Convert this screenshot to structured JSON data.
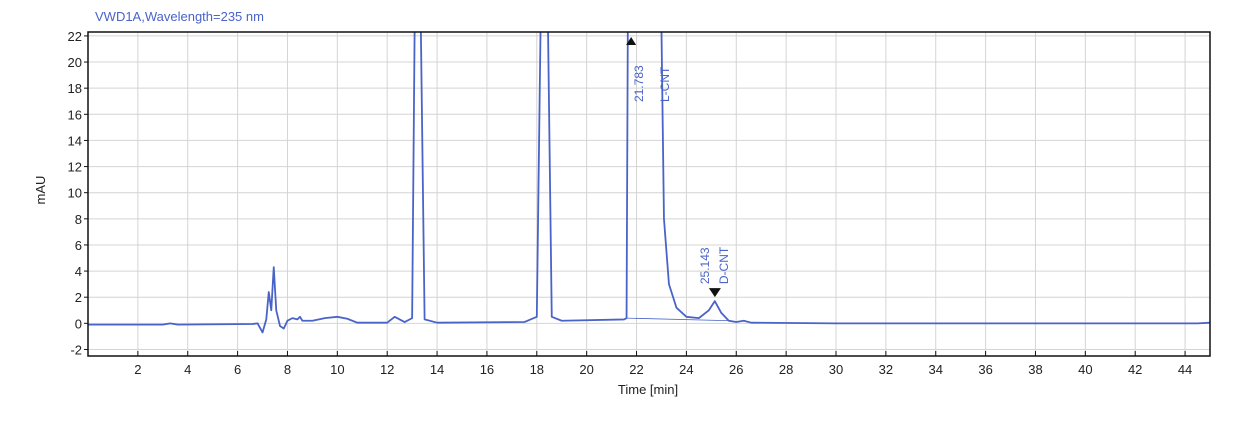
{
  "chart_data": {
    "type": "line",
    "title": "VWD1A,Wavelength=235 nm",
    "xlabel": "Time [min]",
    "ylabel": "mAU",
    "xlim": [
      0,
      45
    ],
    "ylim": [
      -2.5,
      22.3
    ],
    "xticks": [
      2,
      4,
      6,
      8,
      10,
      12,
      14,
      16,
      18,
      20,
      22,
      24,
      26,
      28,
      30,
      32,
      34,
      36,
      38,
      40,
      42,
      44
    ],
    "yticks": [
      -2,
      0,
      2,
      4,
      6,
      8,
      10,
      12,
      14,
      16,
      18,
      20,
      22
    ],
    "grid": true,
    "line_color": "#4a63c9",
    "series": [
      {
        "points": [
          [
            0,
            -0.1
          ],
          [
            3,
            -0.1
          ],
          [
            3.3,
            0
          ],
          [
            3.6,
            -0.1
          ],
          [
            6.6,
            -0.05
          ],
          [
            6.8,
            0
          ],
          [
            7.0,
            -0.7
          ],
          [
            7.15,
            0.3
          ],
          [
            7.25,
            2.4
          ],
          [
            7.35,
            1.0
          ],
          [
            7.45,
            4.3
          ],
          [
            7.55,
            1.0
          ],
          [
            7.7,
            -0.2
          ],
          [
            7.85,
            -0.4
          ],
          [
            8.0,
            0.2
          ],
          [
            8.2,
            0.4
          ],
          [
            8.4,
            0.3
          ],
          [
            8.5,
            0.5
          ],
          [
            8.6,
            0.2
          ],
          [
            9.0,
            0.2
          ],
          [
            9.5,
            0.4
          ],
          [
            10.0,
            0.5
          ],
          [
            10.4,
            0.35
          ],
          [
            10.8,
            0.05
          ],
          [
            12.0,
            0.05
          ],
          [
            12.3,
            0.5
          ],
          [
            12.5,
            0.3
          ],
          [
            12.7,
            0.1
          ],
          [
            13.0,
            0.4
          ],
          [
            13.1,
            22.5
          ],
          [
            13.35,
            22.5
          ],
          [
            13.5,
            0.3
          ],
          [
            14,
            0.05
          ],
          [
            17.5,
            0.1
          ],
          [
            18.0,
            0.5
          ],
          [
            18.15,
            22.5
          ],
          [
            18.45,
            22.5
          ],
          [
            18.6,
            0.5
          ],
          [
            19,
            0.2
          ],
          [
            21.5,
            0.3
          ],
          [
            21.6,
            0.4
          ],
          [
            21.65,
            22.5
          ],
          [
            23.0,
            22.5
          ],
          [
            23.1,
            8
          ],
          [
            23.3,
            3
          ],
          [
            23.6,
            1.2
          ],
          [
            24.0,
            0.5
          ],
          [
            24.5,
            0.4
          ],
          [
            24.9,
            1.0
          ],
          [
            25.14,
            1.7
          ],
          [
            25.4,
            0.8
          ],
          [
            25.7,
            0.2
          ],
          [
            26.0,
            0.1
          ],
          [
            26.3,
            0.2
          ],
          [
            26.6,
            0.05
          ],
          [
            30,
            0
          ],
          [
            44.5,
            0
          ],
          [
            45,
            0.05
          ]
        ]
      }
    ],
    "peaks": [
      {
        "rt": "21.783",
        "name": "L-CNT",
        "x": 21.783,
        "marker": "triangle-up"
      },
      {
        "rt": "25.143",
        "name": "D-CNT",
        "x": 25.143,
        "y": 1.7,
        "marker": "triangle-down"
      }
    ]
  }
}
